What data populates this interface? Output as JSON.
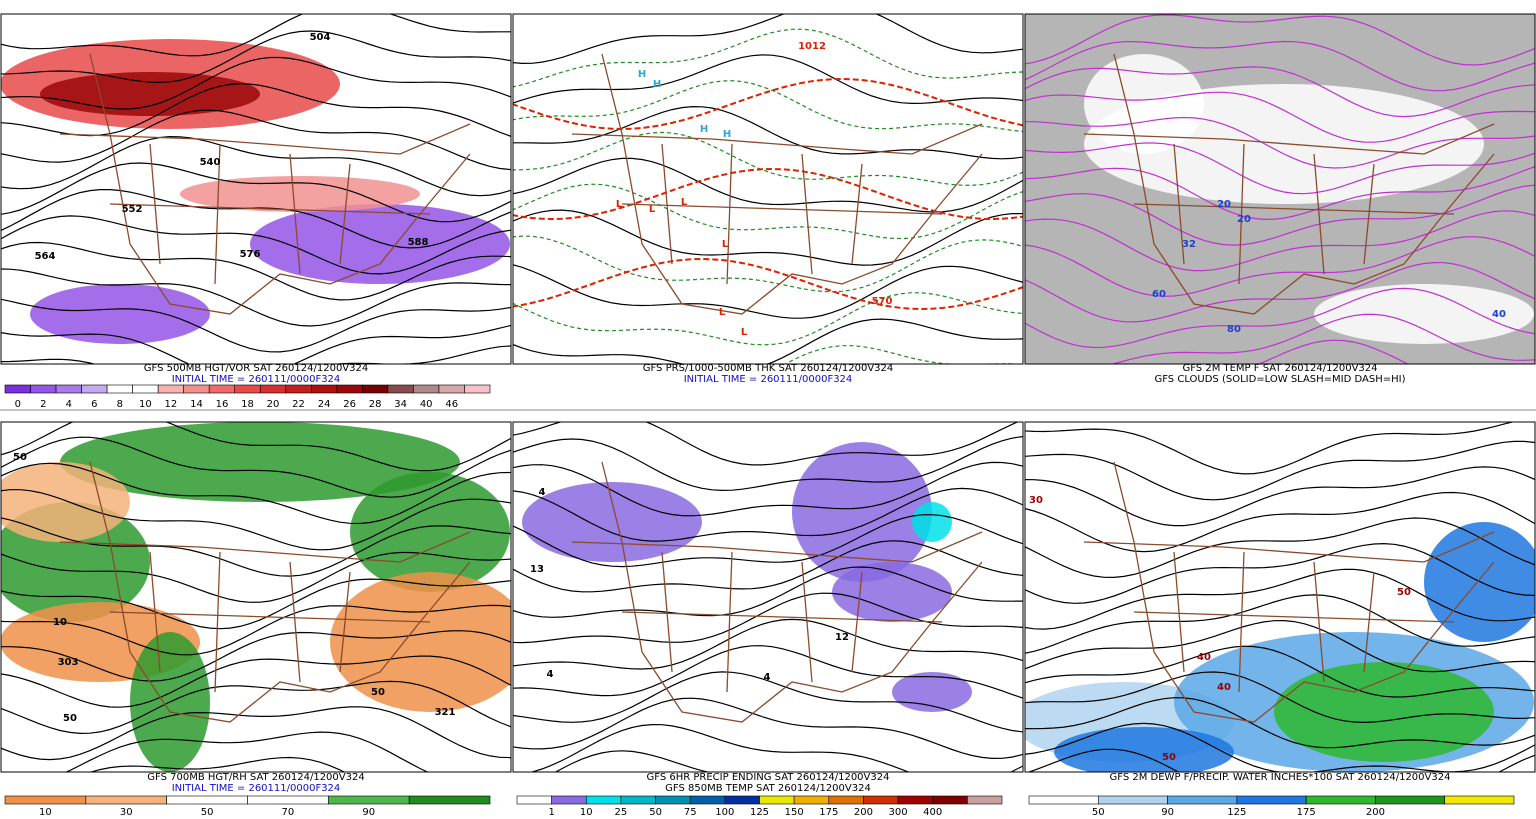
{
  "panels": [
    {
      "caption": [
        "GFS 500MB HGT/VOR SAT 260124/1200V324",
        "INITIAL TIME = 260111/0000F324"
      ],
      "map_labels": [
        "504",
        "540",
        "552",
        "564",
        "576",
        "588"
      ],
      "colorbar": {
        "colors": [
          "#7a2fe0",
          "#9455e8",
          "#a97ae8",
          "#c4a8f0",
          "#ffffff",
          "#ffffff",
          "#f5b0b0",
          "#f29090",
          "#ef6b6b",
          "#e84a4a",
          "#d83030",
          "#c41e1e",
          "#b01010",
          "#9a0808",
          "#7a0000",
          "#8a4a4a",
          "#b08a8a",
          "#d8a8a8",
          "#f8c0c8"
        ],
        "labels": [
          "0",
          "2",
          "4",
          "6",
          "8",
          "10",
          "12",
          "14",
          "16",
          "18",
          "20",
          "22",
          "24",
          "26",
          "28",
          "34",
          "40",
          "46"
        ]
      }
    },
    {
      "caption": [
        "GFS PRS/1000-500MB THK SAT 260124/1200V324",
        "INITIAL TIME = 260111/0000F324"
      ],
      "map_labels": [
        "H",
        "H",
        "H",
        "H",
        "L",
        "L",
        "L",
        "L",
        "L",
        "L",
        "1012",
        "570"
      ]
    },
    {
      "caption": [
        "GFS 2M TEMP F SAT 260124/1200V324",
        "GFS CLOUDS (SOLID=LOW SLASH=MID DASH=HI)"
      ],
      "map_labels": [
        "32",
        "20",
        "20",
        "60",
        "80",
        "40"
      ]
    },
    {
      "caption": [
        "GFS 700MB HGT/RH SAT 260124/1200V324",
        "INITIAL TIME = 260111/0000F324"
      ],
      "map_labels": [
        "50",
        "10",
        "303",
        "50",
        "50",
        "321"
      ],
      "colorbar": {
        "colors": [
          "#f0904a",
          "#f5b27a",
          "#ffffff",
          "#ffffff",
          "#4cb84c",
          "#1e8c1e"
        ],
        "labels": [
          "10",
          "30",
          "50",
          "70",
          "90"
        ]
      }
    },
    {
      "caption": [
        "GFS 6HR PRECIP ENDING SAT 260124/1200V324",
        "GFS 850MB TEMP SAT 260124/1200V324"
      ],
      "map_labels": [
        "4",
        "13",
        "4",
        "4",
        "12"
      ],
      "colorbar": {
        "colors": [
          "#ffffff",
          "#8a6ae0",
          "#00e0e8",
          "#00b8c8",
          "#0090b0",
          "#0060a8",
          "#0030a0",
          "#e8e800",
          "#f0b000",
          "#e07000",
          "#d03000",
          "#a00000",
          "#800000",
          "#c8a0a0"
        ],
        "labels": [
          "1",
          "10",
          "25",
          "50",
          "75",
          "100",
          "125",
          "150",
          "175",
          "200",
          "300",
          "400"
        ]
      }
    },
    {
      "caption": [
        "GFS 2M DEWP F/PRECIP. WATER INCHES*100 SAT 260124/1200V324"
      ],
      "map_labels": [
        "30",
        "40",
        "50",
        "50",
        "40"
      ],
      "colorbar": {
        "colors": [
          "#ffffff",
          "#b0d4f0",
          "#5aa8e8",
          "#1e78e0",
          "#2eb82e",
          "#1e961e",
          "#f0e800"
        ],
        "labels": [
          "50",
          "90",
          "125",
          "175",
          "200"
        ]
      }
    }
  ]
}
